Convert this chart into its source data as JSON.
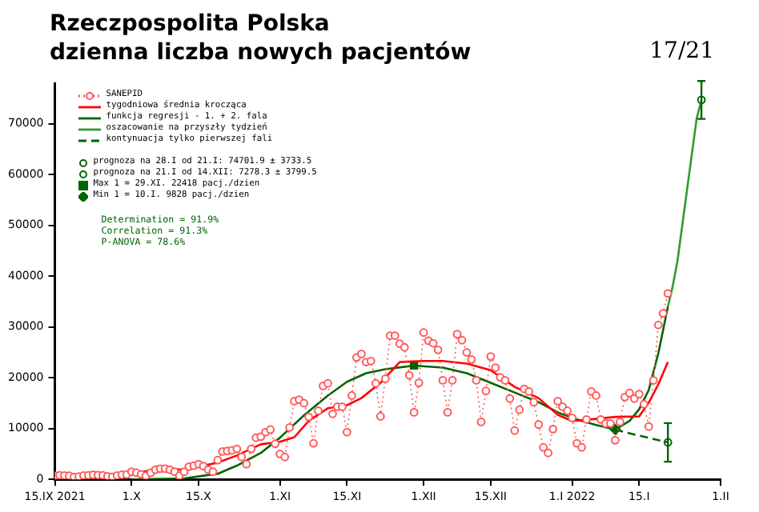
{
  "chart_data": {
    "type": "scatter",
    "title": "Rzeczpospolita Polska",
    "subtitle": "dzienna liczba nowych pacjentów",
    "annotations": [
      "17/21",
      "Determination = 91.9%",
      "Correlation = 91.3%",
      "P-ANOVA = 78.6%"
    ],
    "x": [
      "2021-09-15",
      "2021-09-16",
      "2021-09-17",
      "2021-09-18",
      "2021-09-19",
      "2021-09-20",
      "2021-09-21",
      "2021-09-22",
      "2021-09-23",
      "2021-09-24",
      "2021-09-25",
      "2021-09-26",
      "2021-09-27",
      "2021-09-28",
      "2021-09-29",
      "2021-09-30",
      "2021-10-01",
      "2021-10-02",
      "2021-10-03",
      "2021-10-04",
      "2021-10-05",
      "2021-10-06",
      "2021-10-07",
      "2021-10-08",
      "2021-10-09",
      "2021-10-10",
      "2021-10-11",
      "2021-10-12",
      "2021-10-13",
      "2021-10-14",
      "2021-10-15",
      "2021-10-16",
      "2021-10-17",
      "2021-10-18",
      "2021-10-19",
      "2021-10-20",
      "2021-10-21",
      "2021-10-22",
      "2021-10-23",
      "2021-10-24",
      "2021-10-25",
      "2021-10-26",
      "2021-10-27",
      "2021-10-28",
      "2021-10-29",
      "2021-10-30",
      "2021-10-31",
      "2021-11-01",
      "2021-11-02",
      "2021-11-03",
      "2021-11-04",
      "2021-11-05",
      "2021-11-06",
      "2021-11-07",
      "2021-11-08",
      "2021-11-09",
      "2021-11-10",
      "2021-11-11",
      "2021-11-12",
      "2021-11-13",
      "2021-11-14",
      "2021-11-15",
      "2021-11-16",
      "2021-11-17",
      "2021-11-18",
      "2021-11-19",
      "2021-11-20",
      "2021-11-21",
      "2021-11-22",
      "2021-11-23",
      "2021-11-24",
      "2021-11-25",
      "2021-11-26",
      "2021-11-27",
      "2021-11-28",
      "2021-11-29",
      "2021-11-30",
      "2021-12-01",
      "2021-12-02",
      "2021-12-03",
      "2021-12-04",
      "2021-12-05",
      "2021-12-06",
      "2021-12-07",
      "2021-12-08",
      "2021-12-09",
      "2021-12-10",
      "2021-12-11",
      "2021-12-12",
      "2021-12-13",
      "2021-12-14",
      "2021-12-15",
      "2021-12-16",
      "2021-12-17",
      "2021-12-18",
      "2021-12-19",
      "2021-12-20",
      "2021-12-21",
      "2021-12-22",
      "2021-12-23",
      "2021-12-24",
      "2021-12-25",
      "2021-12-26",
      "2021-12-27",
      "2021-12-28",
      "2021-12-29",
      "2021-12-30",
      "2021-12-31",
      "2022-01-01",
      "2022-01-02",
      "2022-01-03",
      "2022-01-04",
      "2022-01-05",
      "2022-01-06",
      "2022-01-07",
      "2022-01-08",
      "2022-01-09",
      "2022-01-10",
      "2022-01-11",
      "2022-01-12",
      "2022-01-13",
      "2022-01-14",
      "2022-01-15",
      "2022-01-16",
      "2022-01-17",
      "2022-01-18",
      "2022-01-19",
      "2022-01-20",
      "2022-01-21"
    ],
    "series": [
      {
        "name": "SANEPID",
        "type": "line",
        "color": "#ff5a5a",
        "marker": "circle",
        "line_style": "dotted",
        "values": [
          700,
          800,
          750,
          700,
          450,
          550,
          750,
          800,
          900,
          850,
          800,
          600,
          500,
          750,
          900,
          950,
          1500,
          1300,
          1000,
          700,
          1300,
          1900,
          2100,
          2100,
          1900,
          1500,
          700,
          1500,
          2500,
          2700,
          3000,
          2600,
          1900,
          1500,
          3800,
          5500,
          5600,
          5700,
          6000,
          4400,
          3000,
          6000,
          8200,
          8400,
          9300,
          9800,
          7000,
          5000,
          4400,
          10200,
          15400,
          15700,
          15000,
          12300,
          7100,
          13500,
          18400,
          18900,
          12900,
          14300,
          14300,
          9300,
          16500,
          24000,
          24700,
          23100,
          23300,
          18900,
          12400,
          19800,
          28300,
          28300,
          26700,
          26000,
          20500,
          13200,
          19000,
          28900,
          27300,
          26800,
          25500,
          19500,
          13200,
          19500,
          28600,
          27400,
          25000,
          23600,
          19500,
          11300,
          17400,
          24200,
          22000,
          20100,
          19500,
          15900,
          9600,
          13700,
          17800,
          17300,
          15200,
          10800,
          6300,
          5200,
          9900,
          15400,
          14300,
          13500,
          12100,
          7100,
          6300,
          11800,
          17300,
          16500,
          11800,
          11000,
          11000,
          7700,
          11300,
          16200,
          17000,
          15900,
          16800,
          14800,
          10400,
          19500,
          30400,
          32700,
          36600
        ]
      },
      {
        "name": "tygodniowa średnia krocząca",
        "type": "line",
        "color": "#ff0000",
        "marker": "none",
        "line_style": "solid",
        "x": [
          "2021-09-15",
          "2021-09-26",
          "2021-10-01",
          "2021-10-07",
          "2021-10-12",
          "2021-10-15",
          "2021-10-19",
          "2021-10-23",
          "2021-10-28",
          "2021-11-01",
          "2021-11-04",
          "2021-11-07",
          "2021-11-11",
          "2021-11-15",
          "2021-11-18",
          "2021-11-22",
          "2021-11-26",
          "2021-12-01",
          "2021-12-05",
          "2021-12-10",
          "2021-12-15",
          "2021-12-20",
          "2021-12-25",
          "2021-12-29",
          "2022-01-01",
          "2022-01-06",
          "2022-01-10",
          "2022-01-15",
          "2022-01-17",
          "2022-01-19",
          "2022-01-21"
        ],
        "values": [
          500,
          800,
          1100,
          2100,
          1900,
          2500,
          3300,
          4700,
          6900,
          7400,
          8300,
          11500,
          14000,
          14600,
          16000,
          19000,
          23100,
          23300,
          23300,
          22800,
          21500,
          18200,
          16000,
          12700,
          11500,
          11900,
          12300,
          12400,
          15100,
          18700,
          23100
        ]
      },
      {
        "name": "funkcja regresji - 1. + 2. fala",
        "type": "line",
        "color": "#006400",
        "marker": "none",
        "line_style": "solid",
        "x": [
          "2021-10-01",
          "2021-10-12",
          "2021-10-19",
          "2021-10-23",
          "2021-10-28",
          "2021-11-01",
          "2021-11-06",
          "2021-11-11",
          "2021-11-15",
          "2021-11-19",
          "2021-11-23",
          "2021-11-29",
          "2021-12-05",
          "2021-12-10",
          "2021-12-15",
          "2021-12-20",
          "2021-12-25",
          "2021-12-29",
          "2022-01-01",
          "2022-01-06",
          "2022-01-10",
          "2022-01-13",
          "2022-01-15",
          "2022-01-17",
          "2022-01-19",
          "2022-01-21"
        ],
        "values": [
          0,
          200,
          1100,
          2700,
          5200,
          8200,
          12600,
          16500,
          19200,
          20900,
          21700,
          22400,
          22000,
          20900,
          19000,
          17100,
          15200,
          13200,
          12100,
          10700,
          9800,
          11500,
          13800,
          17600,
          24800,
          34000
        ]
      },
      {
        "name": "oszacowanie na przyszły tydzień",
        "type": "line",
        "color": "#2e9b2e",
        "marker": "none",
        "line_style": "solid",
        "x": [
          "2022-01-21",
          "2022-01-22",
          "2022-01-23",
          "2022-01-24",
          "2022-01-25",
          "2022-01-26",
          "2022-01-27",
          "2022-01-28"
        ],
        "values": [
          34000,
          38000,
          43000,
          50000,
          57000,
          64000,
          71000,
          74700
        ]
      },
      {
        "name": "kontynuacja tylko pierwszej fali",
        "type": "line",
        "color": "#006400",
        "marker": "none",
        "line_style": "dashed",
        "x": [
          "2022-01-10",
          "2022-01-15",
          "2022-01-21"
        ],
        "values": [
          9800,
          8600,
          7300
        ]
      },
      {
        "name": "prognoza na 28.I od 21.I: 74701.9 ± 3733.5",
        "color": "#006400",
        "marker": "circle",
        "x": [
          "2022-01-28"
        ],
        "values": [
          74701.9
        ],
        "errors": [
          3733.5
        ]
      },
      {
        "name": "prognoza na 21.I od 14.XII: 7278.3 ± 3799.5",
        "color": "#006400",
        "marker": "circle",
        "x": [
          "2022-01-21"
        ],
        "values": [
          7278.3
        ],
        "errors": [
          3799.5
        ]
      },
      {
        "name": "Max 1 = 29.XI. 22418 pacj./dzien",
        "color": "#006400",
        "marker": "square",
        "x": [
          "2021-11-29"
        ],
        "values": [
          22418
        ]
      },
      {
        "name": "Min 1 = 10.I. 9828 pacj./dzien",
        "color": "#006400",
        "marker": "diamond",
        "x": [
          "2022-01-10"
        ],
        "values": [
          9828
        ]
      }
    ],
    "xlim": [
      "2021-09-15",
      "2022-02-01"
    ],
    "xticks": [
      {
        "value": "2021-09-15",
        "label": "15.IX 2021"
      },
      {
        "value": "2021-10-01",
        "label": "1.X"
      },
      {
        "value": "2021-10-15",
        "label": "15.X"
      },
      {
        "value": "2021-11-01",
        "label": "1.XI"
      },
      {
        "value": "2021-11-15",
        "label": "15.XI"
      },
      {
        "value": "2021-12-01",
        "label": "1.XII"
      },
      {
        "value": "2021-12-15",
        "label": "15.XII"
      },
      {
        "value": "2022-01-01",
        "label": "1.I 2022"
      },
      {
        "value": "2022-01-15",
        "label": "15.I"
      },
      {
        "value": "2022-02-01",
        "label": "1.II"
      }
    ],
    "ylim": [
      0,
      78000
    ],
    "yticks": [
      0,
      10000,
      20000,
      30000,
      40000,
      50000,
      60000,
      70000
    ],
    "legend": "top left"
  }
}
